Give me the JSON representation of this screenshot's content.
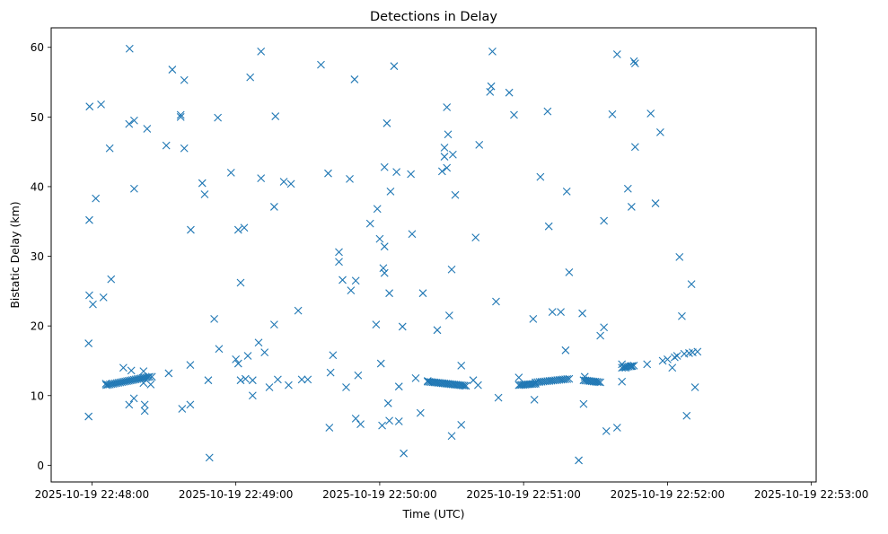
{
  "chart_data": {
    "type": "scatter",
    "title": "Detections in Delay",
    "xlabel": "Time (UTC)",
    "ylabel": "Bistatic Delay (km)",
    "marker": "x",
    "series_color": "#1f77b4",
    "grid": false,
    "legend": "none",
    "x_axis": {
      "type": "time",
      "min": "2025-10-19 22:47:43",
      "max": "2025-10-19 22:53:02",
      "ticks": [
        "2025-10-19 22:48:00",
        "2025-10-19 22:49:00",
        "2025-10-19 22:50:00",
        "2025-10-19 22:51:00",
        "2025-10-19 22:52:00",
        "2025-10-19 22:53:00"
      ]
    },
    "y_axis": {
      "min": -2.4,
      "max": 62.8,
      "ticks": [
        0,
        10,
        20,
        30,
        40,
        50,
        60
      ]
    },
    "series": [
      {
        "points": [
          [
            "2025-10-19 22:47:58.6",
            7.0
          ],
          [
            "2025-10-19 22:47:58.6",
            17.5
          ],
          [
            "2025-10-19 22:47:58.9",
            24.4
          ],
          [
            "2025-10-19 22:47:58.9",
            35.2
          ],
          [
            "2025-10-19 22:47:59.0",
            51.5
          ],
          [
            "2025-10-19 22:48:00.4",
            23.1
          ],
          [
            "2025-10-19 22:48:01.6",
            38.3
          ],
          [
            "2025-10-19 22:48:03.8",
            51.8
          ],
          [
            "2025-10-19 22:48:04.8",
            24.1
          ],
          [
            "2025-10-19 22:48:05.8",
            11.7
          ],
          [
            "2025-10-19 22:48:07.4",
            45.5
          ],
          [
            "2025-10-19 22:48:08.0",
            26.7
          ],
          [
            "2025-10-19 22:48:13.1",
            14.0
          ],
          [
            "2025-10-19 22:48:15.5",
            8.7
          ],
          [
            "2025-10-19 22:48:15.5",
            49.0
          ],
          [
            "2025-10-19 22:48:15.7",
            59.8
          ],
          [
            "2025-10-19 22:48:16.4",
            13.6
          ],
          [
            "2025-10-19 22:48:17.5",
            9.6
          ],
          [
            "2025-10-19 22:48:17.6",
            39.7
          ],
          [
            "2025-10-19 22:48:17.6",
            49.5
          ],
          [
            "2025-10-19 22:48:21.5",
            11.8
          ],
          [
            "2025-10-19 22:48:21.5",
            13.5
          ],
          [
            "2025-10-19 22:48:22.0",
            8.7
          ],
          [
            "2025-10-19 22:48:22.0",
            7.8
          ],
          [
            "2025-10-19 22:48:23.0",
            48.3
          ],
          [
            "2025-10-19 22:48:24.5",
            11.6
          ],
          [
            "2025-10-19 22:48:25.0",
            12.7
          ],
          [
            "2025-10-19 22:48:32.0",
            13.2
          ],
          [
            "2025-10-19 22:48:31.0",
            45.9
          ],
          [
            "2025-10-19 22:48:33.5",
            56.8
          ],
          [
            "2025-10-19 22:48:37.0",
            50.0
          ],
          [
            "2025-10-19 22:48:37.0",
            50.3
          ],
          [
            "2025-10-19 22:48:37.6",
            8.1
          ],
          [
            "2025-10-19 22:48:38.5",
            45.5
          ],
          [
            "2025-10-19 22:48:38.5",
            55.3
          ],
          [
            "2025-10-19 22:48:41.0",
            14.4
          ],
          [
            "2025-10-19 22:48:41.0",
            8.7
          ],
          [
            "2025-10-19 22:48:41.2",
            33.8
          ],
          [
            "2025-10-19 22:48:46.0",
            40.5
          ],
          [
            "2025-10-19 22:48:47.0",
            38.9
          ],
          [
            "2025-10-19 22:48:48.5",
            12.2
          ],
          [
            "2025-10-19 22:48:49.0",
            1.1
          ],
          [
            "2025-10-19 22:48:51.0",
            21.0
          ],
          [
            "2025-10-19 22:48:52.5",
            49.9
          ],
          [
            "2025-10-19 22:48:53.0",
            16.7
          ],
          [
            "2025-10-19 22:48:58.0",
            42.0
          ],
          [
            "2025-10-19 22:49:00.0",
            15.2
          ],
          [
            "2025-10-19 22:49:01.0",
            33.8
          ],
          [
            "2025-10-19 22:49:01.0",
            14.6
          ],
          [
            "2025-10-19 22:49:02.0",
            12.2
          ],
          [
            "2025-10-19 22:49:02.0",
            26.2
          ],
          [
            "2025-10-19 22:49:03.5",
            34.1
          ],
          [
            "2025-10-19 22:49:04.0",
            12.4
          ],
          [
            "2025-10-19 22:49:05.0",
            15.7
          ],
          [
            "2025-10-19 22:49:06.0",
            55.7
          ],
          [
            "2025-10-19 22:49:07.0",
            10.0
          ],
          [
            "2025-10-19 22:49:07.0",
            12.2
          ],
          [
            "2025-10-19 22:49:09.5",
            17.6
          ],
          [
            "2025-10-19 22:49:10.5",
            59.4
          ],
          [
            "2025-10-19 22:49:10.5",
            41.2
          ],
          [
            "2025-10-19 22:49:12.0",
            16.2
          ],
          [
            "2025-10-19 22:49:14.0",
            11.2
          ],
          [
            "2025-10-19 22:49:16.0",
            20.2
          ],
          [
            "2025-10-19 22:49:16.0",
            37.1
          ],
          [
            "2025-10-19 22:49:16.5",
            50.1
          ],
          [
            "2025-10-19 22:49:17.5",
            12.3
          ],
          [
            "2025-10-19 22:49:20.0",
            40.7
          ],
          [
            "2025-10-19 22:49:22.0",
            11.5
          ],
          [
            "2025-10-19 22:49:23.0",
            40.4
          ],
          [
            "2025-10-19 22:49:26.0",
            22.2
          ],
          [
            "2025-10-19 22:49:27.5",
            12.3
          ],
          [
            "2025-10-19 22:49:30.0",
            12.3
          ],
          [
            "2025-10-19 22:49:35.5",
            57.5
          ],
          [
            "2025-10-19 22:49:38.5",
            41.9
          ],
          [
            "2025-10-19 22:49:39.0",
            5.4
          ],
          [
            "2025-10-19 22:49:39.5",
            13.3
          ],
          [
            "2025-10-19 22:49:40.5",
            15.8
          ],
          [
            "2025-10-19 22:49:43.0",
            30.6
          ],
          [
            "2025-10-19 22:49:43.0",
            29.2
          ],
          [
            "2025-10-19 22:49:44.5",
            26.6
          ],
          [
            "2025-10-19 22:49:46.0",
            11.2
          ],
          [
            "2025-10-19 22:49:47.5",
            41.1
          ],
          [
            "2025-10-19 22:49:48.0",
            25.1
          ],
          [
            "2025-10-19 22:49:49.5",
            55.4
          ],
          [
            "2025-10-19 22:49:50.0",
            26.5
          ],
          [
            "2025-10-19 22:49:50.0",
            6.7
          ],
          [
            "2025-10-19 22:49:51.0",
            12.9
          ],
          [
            "2025-10-19 22:49:52.0",
            5.9
          ],
          [
            "2025-10-19 22:49:56.0",
            34.7
          ],
          [
            "2025-10-19 22:49:58.5",
            20.2
          ],
          [
            "2025-10-19 22:49:59.0",
            36.8
          ],
          [
            "2025-10-19 22:50:00.0",
            32.5
          ],
          [
            "2025-10-19 22:50:00.5",
            14.6
          ],
          [
            "2025-10-19 22:50:01.0",
            5.7
          ],
          [
            "2025-10-19 22:50:01.5",
            28.3
          ],
          [
            "2025-10-19 22:50:02.0",
            42.8
          ],
          [
            "2025-10-19 22:50:02.0",
            27.6
          ],
          [
            "2025-10-19 22:50:02.0",
            31.4
          ],
          [
            "2025-10-19 22:50:03.0",
            49.1
          ],
          [
            "2025-10-19 22:50:03.5",
            8.9
          ],
          [
            "2025-10-19 22:50:04.0",
            6.4
          ],
          [
            "2025-10-19 22:50:04.0",
            24.7
          ],
          [
            "2025-10-19 22:50:04.5",
            39.3
          ],
          [
            "2025-10-19 22:50:06.0",
            57.3
          ],
          [
            "2025-10-19 22:50:07.0",
            42.1
          ],
          [
            "2025-10-19 22:50:08.0",
            11.3
          ],
          [
            "2025-10-19 22:50:08.0",
            6.3
          ],
          [
            "2025-10-19 22:50:09.5",
            19.9
          ],
          [
            "2025-10-19 22:50:10.0",
            1.7
          ],
          [
            "2025-10-19 22:50:13.0",
            41.8
          ],
          [
            "2025-10-19 22:50:13.5",
            33.2
          ],
          [
            "2025-10-19 22:50:15.0",
            12.5
          ],
          [
            "2025-10-19 22:50:17.0",
            7.5
          ],
          [
            "2025-10-19 22:50:18.0",
            24.7
          ],
          [
            "2025-10-19 22:50:20.0",
            12.1
          ],
          [
            "2025-10-19 22:50:24.0",
            19.4
          ],
          [
            "2025-10-19 22:50:26.0",
            42.2
          ],
          [
            "2025-10-19 22:50:27.0",
            45.6
          ],
          [
            "2025-10-19 22:50:27.0",
            44.3
          ],
          [
            "2025-10-19 22:50:28.0",
            51.4
          ],
          [
            "2025-10-19 22:50:28.0",
            42.7
          ],
          [
            "2025-10-19 22:50:28.5",
            47.5
          ],
          [
            "2025-10-19 22:50:29.0",
            21.5
          ],
          [
            "2025-10-19 22:50:30.0",
            4.2
          ],
          [
            "2025-10-19 22:50:30.0",
            28.1
          ],
          [
            "2025-10-19 22:50:30.5",
            44.6
          ],
          [
            "2025-10-19 22:50:31.5",
            38.8
          ],
          [
            "2025-10-19 22:50:34.0",
            14.3
          ],
          [
            "2025-10-19 22:50:34.0",
            5.8
          ],
          [
            "2025-10-19 22:50:39.0",
            12.2
          ],
          [
            "2025-10-19 22:50:40.0",
            32.7
          ],
          [
            "2025-10-19 22:50:41.0",
            11.5
          ],
          [
            "2025-10-19 22:50:41.5",
            46.0
          ],
          [
            "2025-10-19 22:50:46.0",
            53.6
          ],
          [
            "2025-10-19 22:50:46.5",
            54.4
          ],
          [
            "2025-10-19 22:50:47.0",
            59.4
          ],
          [
            "2025-10-19 22:50:48.5",
            23.5
          ],
          [
            "2025-10-19 22:50:49.5",
            9.7
          ],
          [
            "2025-10-19 22:50:54.0",
            53.5
          ],
          [
            "2025-10-19 22:50:56.0",
            50.3
          ],
          [
            "2025-10-19 22:50:58.0",
            12.6
          ],
          [
            "2025-10-19 22:51:04.0",
            21.0
          ],
          [
            "2025-10-19 22:51:04.5",
            9.4
          ],
          [
            "2025-10-19 22:51:07.0",
            41.4
          ],
          [
            "2025-10-19 22:51:10.0",
            50.8
          ],
          [
            "2025-10-19 22:51:10.5",
            34.3
          ],
          [
            "2025-10-19 22:51:12.0",
            22.0
          ],
          [
            "2025-10-19 22:51:15.5",
            22.0
          ],
          [
            "2025-10-19 22:51:17.5",
            16.5
          ],
          [
            "2025-10-19 22:51:18.0",
            39.3
          ],
          [
            "2025-10-19 22:51:19.0",
            27.7
          ],
          [
            "2025-10-19 22:51:23.0",
            0.7
          ],
          [
            "2025-10-19 22:51:24.5",
            21.8
          ],
          [
            "2025-10-19 22:51:25.0",
            8.8
          ],
          [
            "2025-10-19 22:51:25.5",
            12.7
          ],
          [
            "2025-10-19 22:51:32.0",
            18.6
          ],
          [
            "2025-10-19 22:51:33.5",
            35.1
          ],
          [
            "2025-10-19 22:51:33.5",
            19.8
          ],
          [
            "2025-10-19 22:51:34.5",
            4.9
          ],
          [
            "2025-10-19 22:51:37.0",
            50.4
          ],
          [
            "2025-10-19 22:51:39.0",
            5.4
          ],
          [
            "2025-10-19 22:51:39.0",
            59.0
          ],
          [
            "2025-10-19 22:51:41.0",
            12.0
          ],
          [
            "2025-10-19 22:51:41.0",
            14.5
          ],
          [
            "2025-10-19 22:51:42.5",
            14.0
          ],
          [
            "2025-10-19 22:51:43.5",
            39.7
          ],
          [
            "2025-10-19 22:51:45.0",
            37.1
          ],
          [
            "2025-10-19 22:51:45.0",
            14.2
          ],
          [
            "2025-10-19 22:51:46.0",
            58.0
          ],
          [
            "2025-10-19 22:51:46.5",
            57.7
          ],
          [
            "2025-10-19 22:51:46.5",
            45.7
          ],
          [
            "2025-10-19 22:51:51.5",
            14.5
          ],
          [
            "2025-10-19 22:51:53.0",
            50.5
          ],
          [
            "2025-10-19 22:51:55.0",
            37.6
          ],
          [
            "2025-10-19 22:51:57.0",
            47.8
          ],
          [
            "2025-10-19 22:51:58.0",
            15.0
          ],
          [
            "2025-10-19 22:52:00.0",
            15.2
          ],
          [
            "2025-10-19 22:52:02.0",
            14.0
          ],
          [
            "2025-10-19 22:52:03.0",
            15.5
          ],
          [
            "2025-10-19 22:52:04.0",
            15.7
          ],
          [
            "2025-10-19 22:52:05.0",
            29.9
          ],
          [
            "2025-10-19 22:52:06.0",
            21.4
          ],
          [
            "2025-10-19 22:52:07.0",
            16.0
          ],
          [
            "2025-10-19 22:52:08.0",
            7.1
          ],
          [
            "2025-10-19 22:52:09.0",
            16.1
          ],
          [
            "2025-10-19 22:52:10.0",
            26.0
          ],
          [
            "2025-10-19 22:52:10.5",
            16.2
          ],
          [
            "2025-10-19 22:52:11.5",
            11.2
          ],
          [
            "2025-10-19 22:52:12.5",
            16.3
          ]
        ],
        "clusters": [
          {
            "x_start": "2025-10-19 22:48:06.0",
            "x_end": "2025-10-19 22:48:24.0",
            "y_start": 11.5,
            "y_end": 12.7,
            "count": 26
          },
          {
            "x_start": "2025-10-19 22:50:20.0",
            "x_end": "2025-10-19 22:50:36.0",
            "y_start": 12.0,
            "y_end": 11.4,
            "count": 24
          },
          {
            "x_start": "2025-10-19 22:50:58.0",
            "x_end": "2025-10-19 22:51:05.0",
            "y_start": 11.5,
            "y_end": 11.7,
            "count": 12
          },
          {
            "x_start": "2025-10-19 22:51:05.0",
            "x_end": "2025-10-19 22:51:19.0",
            "y_start": 11.9,
            "y_end": 12.4,
            "count": 18
          },
          {
            "x_start": "2025-10-19 22:51:25.0",
            "x_end": "2025-10-19 22:51:32.0",
            "y_start": 12.2,
            "y_end": 11.9,
            "count": 11
          },
          {
            "x_start": "2025-10-19 22:51:41.0",
            "x_end": "2025-10-19 22:51:46.0",
            "y_start": 14.0,
            "y_end": 14.3,
            "count": 8
          }
        ]
      }
    ]
  }
}
